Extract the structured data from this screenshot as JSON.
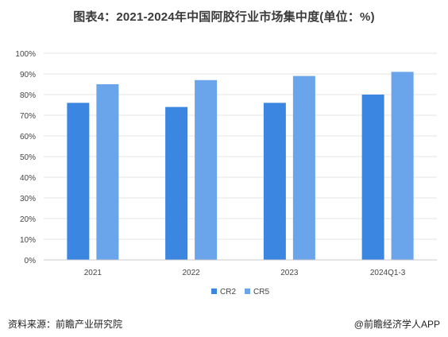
{
  "title": "图表4：2021-2024年中国阿胶行业市场集中度(单位：%)",
  "source": "资料来源：前瞻产业研究院",
  "brand": "前瞻经济学人APP",
  "colors": {
    "cr2": "#3a86e0",
    "cr5": "#6aa4ea",
    "grid": "#e6e6e6",
    "axis": "#c8c8c8"
  },
  "chart_data": {
    "type": "bar",
    "title": "图表4：2021-2024年中国阿胶行业市场集中度(单位：%)",
    "categories": [
      "2021",
      "2022",
      "2023",
      "2024Q1-3"
    ],
    "series": [
      {
        "name": "CR2",
        "values": [
          76,
          74,
          76,
          80
        ]
      },
      {
        "name": "CR5",
        "values": [
          85,
          87,
          89,
          91
        ]
      }
    ],
    "ylim": [
      0,
      100
    ],
    "yticks": [
      "0%",
      "10%",
      "20%",
      "30%",
      "40%",
      "50%",
      "60%",
      "70%",
      "80%",
      "90%",
      "100%"
    ],
    "grid": true,
    "legend": "bottom-center"
  }
}
